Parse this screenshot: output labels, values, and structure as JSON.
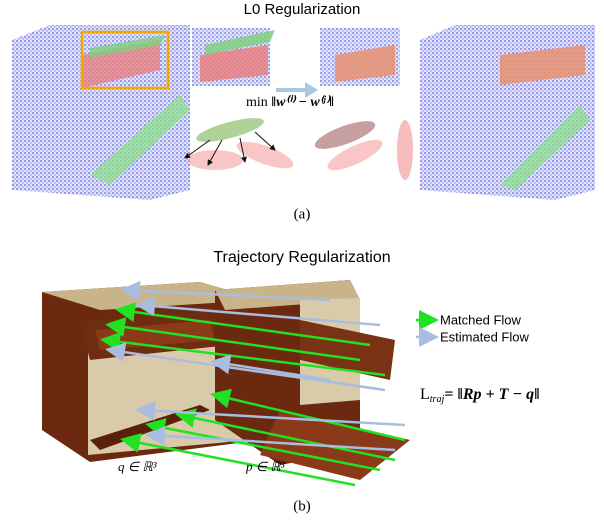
{
  "panel_a": {
    "title": "L0 Regularization",
    "formula": {
      "op": "min",
      "expr": "‖w⁽ⁱ⁾ − w⁽ʲ⁾‖"
    },
    "caption": "(a)"
  },
  "panel_b": {
    "title": "Trajectory Regularization",
    "legend": [
      "Matched Flow",
      "Estimated Flow"
    ],
    "formula": {
      "L": "L",
      "sub": "traj",
      "rhs": "= ‖Rp + T − q‖"
    },
    "labels": [
      "q ∈ ℝ³",
      "p ∈ ℝ³"
    ],
    "caption": "(b)"
  }
}
